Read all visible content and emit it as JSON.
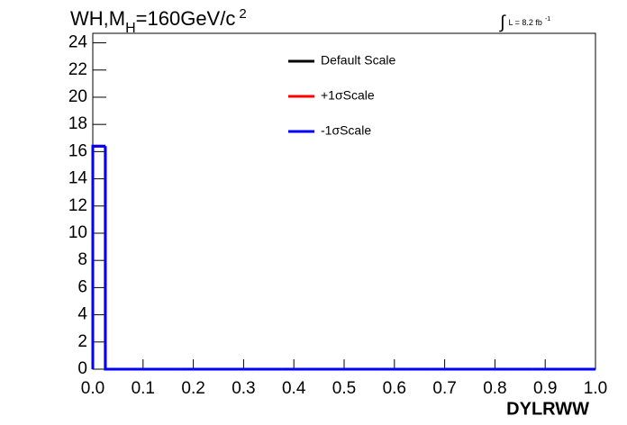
{
  "chart_data": {
    "type": "histogram",
    "title": [
      "WH,M",
      "H",
      "=160GeV/c",
      "2"
    ],
    "annotation": [
      "∫",
      "L = 8.2 fb",
      "-1"
    ],
    "x_label": "DYLRWW",
    "bins": [
      0,
      0.025,
      0.05,
      0.075,
      0.1,
      0.125,
      0.15,
      0.175,
      0.2,
      0.225,
      0.25,
      0.275,
      0.3,
      0.325,
      0.35,
      0.375,
      0.4,
      0.425,
      0.45,
      0.475,
      0.5,
      0.525,
      0.55,
      0.575,
      0.6,
      0.625,
      0.65,
      0.675,
      0.7,
      0.725,
      0.75,
      0.775,
      0.8,
      0.825,
      0.85,
      0.875,
      0.9,
      0.925,
      0.95,
      0.975,
      1.0
    ],
    "series": [
      {
        "name": "Default Scale",
        "color": "#000000",
        "values": [
          16.4,
          0,
          0,
          0,
          0,
          0,
          0,
          0,
          0,
          0,
          0,
          0,
          0,
          0,
          0,
          0,
          0,
          0,
          0,
          0,
          0,
          0,
          0,
          0,
          0,
          0,
          0,
          0,
          0,
          0,
          0,
          0,
          0,
          0,
          0,
          0,
          0,
          0,
          0,
          0
        ]
      },
      {
        "name": "+1σScale",
        "color": "#ff0000",
        "values": [
          16.4,
          0,
          0,
          0,
          0,
          0,
          0,
          0,
          0,
          0,
          0,
          0,
          0,
          0,
          0,
          0,
          0,
          0,
          0,
          0,
          0,
          0,
          0,
          0,
          0,
          0,
          0,
          0,
          0,
          0,
          0,
          0,
          0,
          0,
          0,
          0,
          0,
          0,
          0,
          0
        ]
      },
      {
        "name": "-1σScale",
        "color": "#0000ff",
        "values": [
          16.4,
          0,
          0,
          0,
          0,
          0,
          0,
          0,
          0,
          0,
          0,
          0,
          0,
          0,
          0,
          0,
          0,
          0,
          0,
          0,
          0,
          0,
          0,
          0,
          0,
          0,
          0,
          0,
          0,
          0,
          0,
          0,
          0,
          0,
          0,
          0,
          0,
          0,
          0,
          0
        ]
      }
    ],
    "xlim": [
      0,
      1.0
    ],
    "xticks": [
      {
        "value": 0,
        "label": "0.0"
      },
      0.1,
      0.2,
      0.3,
      0.4,
      0.5,
      0.6,
      0.7,
      0.8,
      0.9,
      {
        "value": 1.0,
        "label": "1.0"
      }
    ],
    "ylim": [
      0,
      24.7
    ],
    "yticks": [
      0,
      2,
      4,
      6,
      8,
      10,
      12,
      14,
      16,
      18,
      20,
      22,
      24
    ]
  }
}
